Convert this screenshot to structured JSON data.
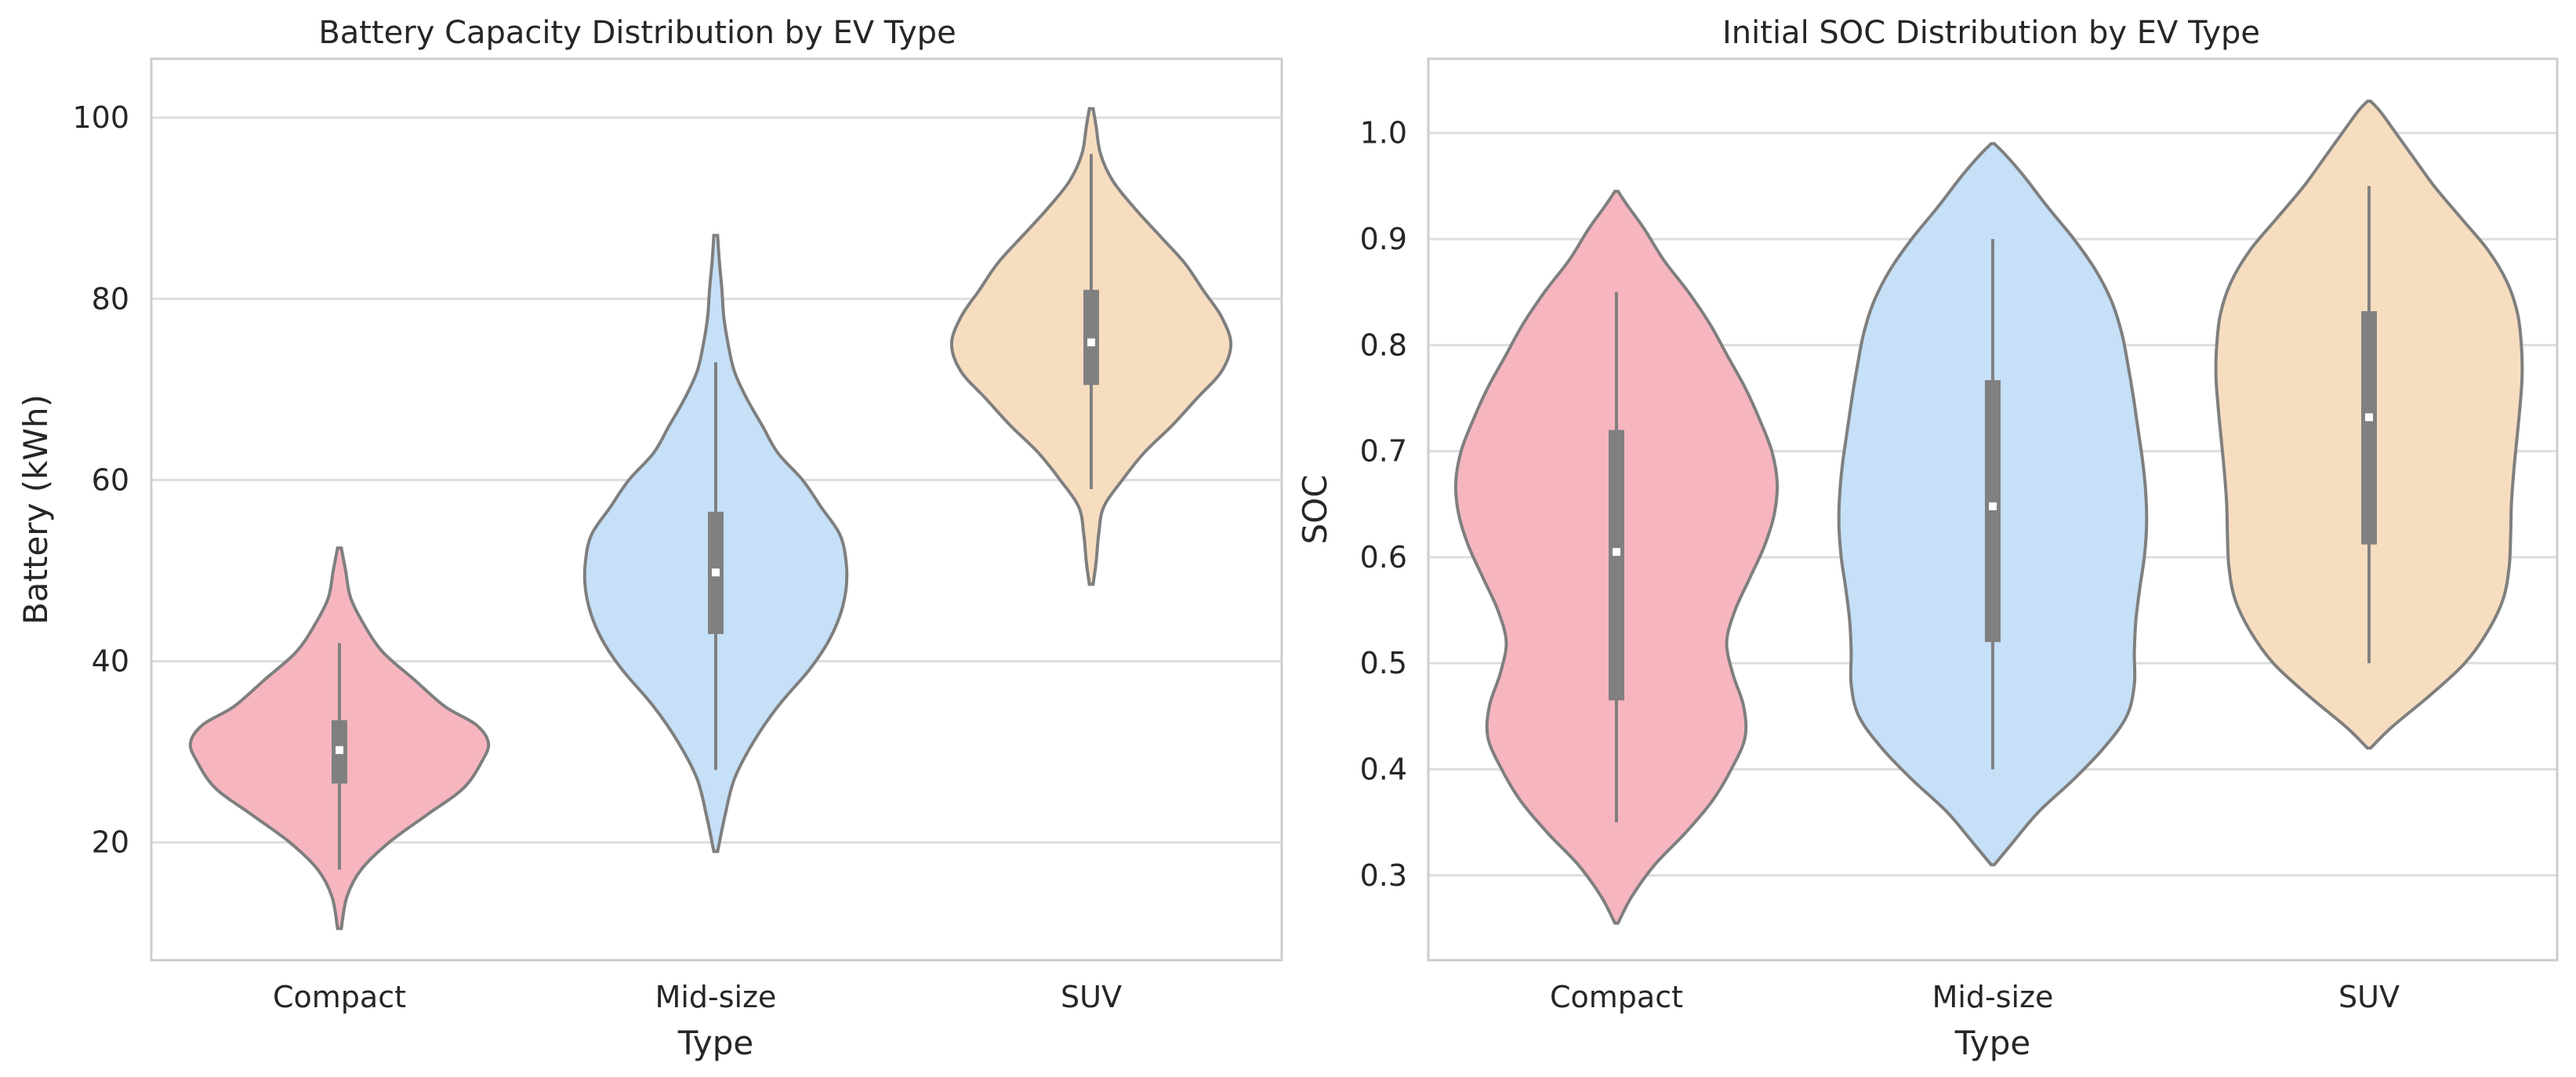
{
  "chart_data": [
    {
      "type": "violin",
      "title": "Battery Capacity Distribution by EV Type",
      "xlabel": "Type",
      "ylabel": "Battery (kWh)",
      "ylim": [
        7,
        106.5
      ],
      "yticks": [
        20,
        40,
        60,
        80,
        100
      ],
      "ytick_labels": [
        "20",
        "40",
        "60",
        "80",
        "100"
      ],
      "grid": true,
      "categories": [
        "Compact",
        "Mid-size",
        "SUV"
      ],
      "series": [
        {
          "name": "Compact",
          "color": "#f7b6bf",
          "min": 10.5,
          "q1": 26.5,
          "median": 30.2,
          "q3": 33.5,
          "max": 52.5,
          "whisker_low": 17,
          "whisker_high": 42,
          "density": [
            [
              10.5,
              0.3
            ],
            [
              14,
              1.2
            ],
            [
              17,
              3.5
            ],
            [
              20,
              8
            ],
            [
              23,
              14
            ],
            [
              26,
              20
            ],
            [
              29,
              23
            ],
            [
              31,
              24
            ],
            [
              33,
              22
            ],
            [
              35,
              17
            ],
            [
              38,
              12
            ],
            [
              41,
              7
            ],
            [
              44,
              4
            ],
            [
              47,
              1.8
            ],
            [
              50,
              1
            ],
            [
              52.5,
              0.3
            ]
          ]
        },
        {
          "name": "Mid-size",
          "color": "#c5e0f7",
          "min": 19,
          "q1": 43,
          "median": 49.8,
          "q3": 56.5,
          "max": 87,
          "whisker_low": 28,
          "whisker_high": 73,
          "density": [
            [
              19,
              0.3
            ],
            [
              23,
              1.5
            ],
            [
              27,
              3
            ],
            [
              31,
              6
            ],
            [
              35,
              10
            ],
            [
              39,
              15
            ],
            [
              42,
              18
            ],
            [
              45,
              20
            ],
            [
              48,
              21
            ],
            [
              51,
              21
            ],
            [
              54,
              20
            ],
            [
              57,
              17
            ],
            [
              60,
              14
            ],
            [
              63,
              10
            ],
            [
              66,
              7.5
            ],
            [
              69,
              5
            ],
            [
              72,
              3
            ],
            [
              75,
              2
            ],
            [
              78,
              1.3
            ],
            [
              81,
              1
            ],
            [
              84,
              0.6
            ],
            [
              87,
              0.3
            ]
          ]
        },
        {
          "name": "SUV",
          "color": "#f7ddc0",
          "min": 48.5,
          "q1": 70.5,
          "median": 75.2,
          "q3": 81,
          "max": 101,
          "whisker_low": 59,
          "whisker_high": 96,
          "density": [
            [
              48.5,
              0.3
            ],
            [
              51,
              0.8
            ],
            [
              54,
              1.2
            ],
            [
              57,
              2
            ],
            [
              60,
              5
            ],
            [
              63,
              8.5
            ],
            [
              66,
              13
            ],
            [
              69,
              17
            ],
            [
              72,
              21
            ],
            [
              75,
              22.5
            ],
            [
              78,
              21
            ],
            [
              81,
              18
            ],
            [
              84,
              15
            ],
            [
              87,
              11
            ],
            [
              90,
              7
            ],
            [
              93,
              3.5
            ],
            [
              96,
              1.5
            ],
            [
              99,
              0.8
            ],
            [
              101,
              0.3
            ]
          ]
        }
      ]
    },
    {
      "type": "violin",
      "title": "Initial SOC Distribution by EV Type",
      "xlabel": "Type",
      "ylabel": "SOC",
      "ylim": [
        0.22,
        1.07
      ],
      "yticks": [
        0.3,
        0.4,
        0.5,
        0.6,
        0.7,
        0.8,
        0.9,
        1.0
      ],
      "ytick_labels": [
        "0.3",
        "0.4",
        "0.5",
        "0.6",
        "0.7",
        "0.8",
        "0.9",
        "1.0"
      ],
      "grid": true,
      "categories": [
        "Compact",
        "Mid-size",
        "SUV"
      ],
      "series": [
        {
          "name": "Compact",
          "color": "#f7b6bf",
          "min": 0.255,
          "q1": 0.465,
          "median": 0.605,
          "q3": 0.72,
          "max": 0.945,
          "whisker_low": 0.35,
          "whisker_high": 0.85,
          "density": [
            [
              0.255,
              0.2
            ],
            [
              0.28,
              2
            ],
            [
              0.31,
              5
            ],
            [
              0.34,
              9
            ],
            [
              0.37,
              12.5
            ],
            [
              0.4,
              15
            ],
            [
              0.43,
              16.8
            ],
            [
              0.46,
              16.6
            ],
            [
              0.49,
              15.2
            ],
            [
              0.52,
              14.4
            ],
            [
              0.55,
              15.5
            ],
            [
              0.58,
              17.4
            ],
            [
              0.61,
              19.3
            ],
            [
              0.64,
              20.6
            ],
            [
              0.67,
              21
            ],
            [
              0.7,
              20.3
            ],
            [
              0.73,
              18.7
            ],
            [
              0.76,
              16.8
            ],
            [
              0.79,
              14.5
            ],
            [
              0.82,
              12.2
            ],
            [
              0.85,
              9.4
            ],
            [
              0.88,
              6.2
            ],
            [
              0.91,
              3.6
            ],
            [
              0.93,
              1.6
            ],
            [
              0.945,
              0.2
            ]
          ]
        },
        {
          "name": "Mid-size",
          "color": "#c5e0f7",
          "min": 0.31,
          "q1": 0.52,
          "median": 0.648,
          "q3": 0.767,
          "max": 0.99,
          "whisker_low": 0.4,
          "whisker_high": 0.9,
          "density": [
            [
              0.31,
              0.2
            ],
            [
              0.33,
              2.5
            ],
            [
              0.36,
              6
            ],
            [
              0.39,
              10.5
            ],
            [
              0.42,
              14.5
            ],
            [
              0.45,
              17.5
            ],
            [
              0.48,
              18.5
            ],
            [
              0.51,
              18.5
            ],
            [
              0.54,
              18.7
            ],
            [
              0.57,
              19.2
            ],
            [
              0.6,
              19.8
            ],
            [
              0.63,
              20.1
            ],
            [
              0.66,
              20
            ],
            [
              0.69,
              19.6
            ],
            [
              0.72,
              19
            ],
            [
              0.75,
              18.4
            ],
            [
              0.78,
              17.7
            ],
            [
              0.81,
              16.9
            ],
            [
              0.84,
              15.6
            ],
            [
              0.87,
              13.5
            ],
            [
              0.9,
              10.6
            ],
            [
              0.93,
              7.2
            ],
            [
              0.96,
              4
            ],
            [
              0.98,
              1.6
            ],
            [
              0.99,
              0.2
            ]
          ]
        },
        {
          "name": "SUV",
          "color": "#f7ddc0",
          "min": 0.42,
          "q1": 0.612,
          "median": 0.732,
          "q3": 0.832,
          "max": 1.03,
          "whisker_low": 0.5,
          "whisker_high": 0.95,
          "density": [
            [
              0.42,
              0.2
            ],
            [
              0.44,
              3
            ],
            [
              0.47,
              8
            ],
            [
              0.5,
              12.5
            ],
            [
              0.53,
              15.5
            ],
            [
              0.56,
              17.5
            ],
            [
              0.59,
              18.3
            ],
            [
              0.62,
              18.5
            ],
            [
              0.65,
              18.6
            ],
            [
              0.68,
              18.9
            ],
            [
              0.71,
              19.3
            ],
            [
              0.74,
              19.7
            ],
            [
              0.77,
              20
            ],
            [
              0.8,
              19.9
            ],
            [
              0.83,
              19.4
            ],
            [
              0.86,
              18
            ],
            [
              0.89,
              15.5
            ],
            [
              0.92,
              12
            ],
            [
              0.95,
              8.5
            ],
            [
              0.98,
              5.5
            ],
            [
              1.0,
              3.5
            ],
            [
              1.02,
              1.5
            ],
            [
              1.03,
              0.2
            ]
          ]
        }
      ]
    }
  ]
}
